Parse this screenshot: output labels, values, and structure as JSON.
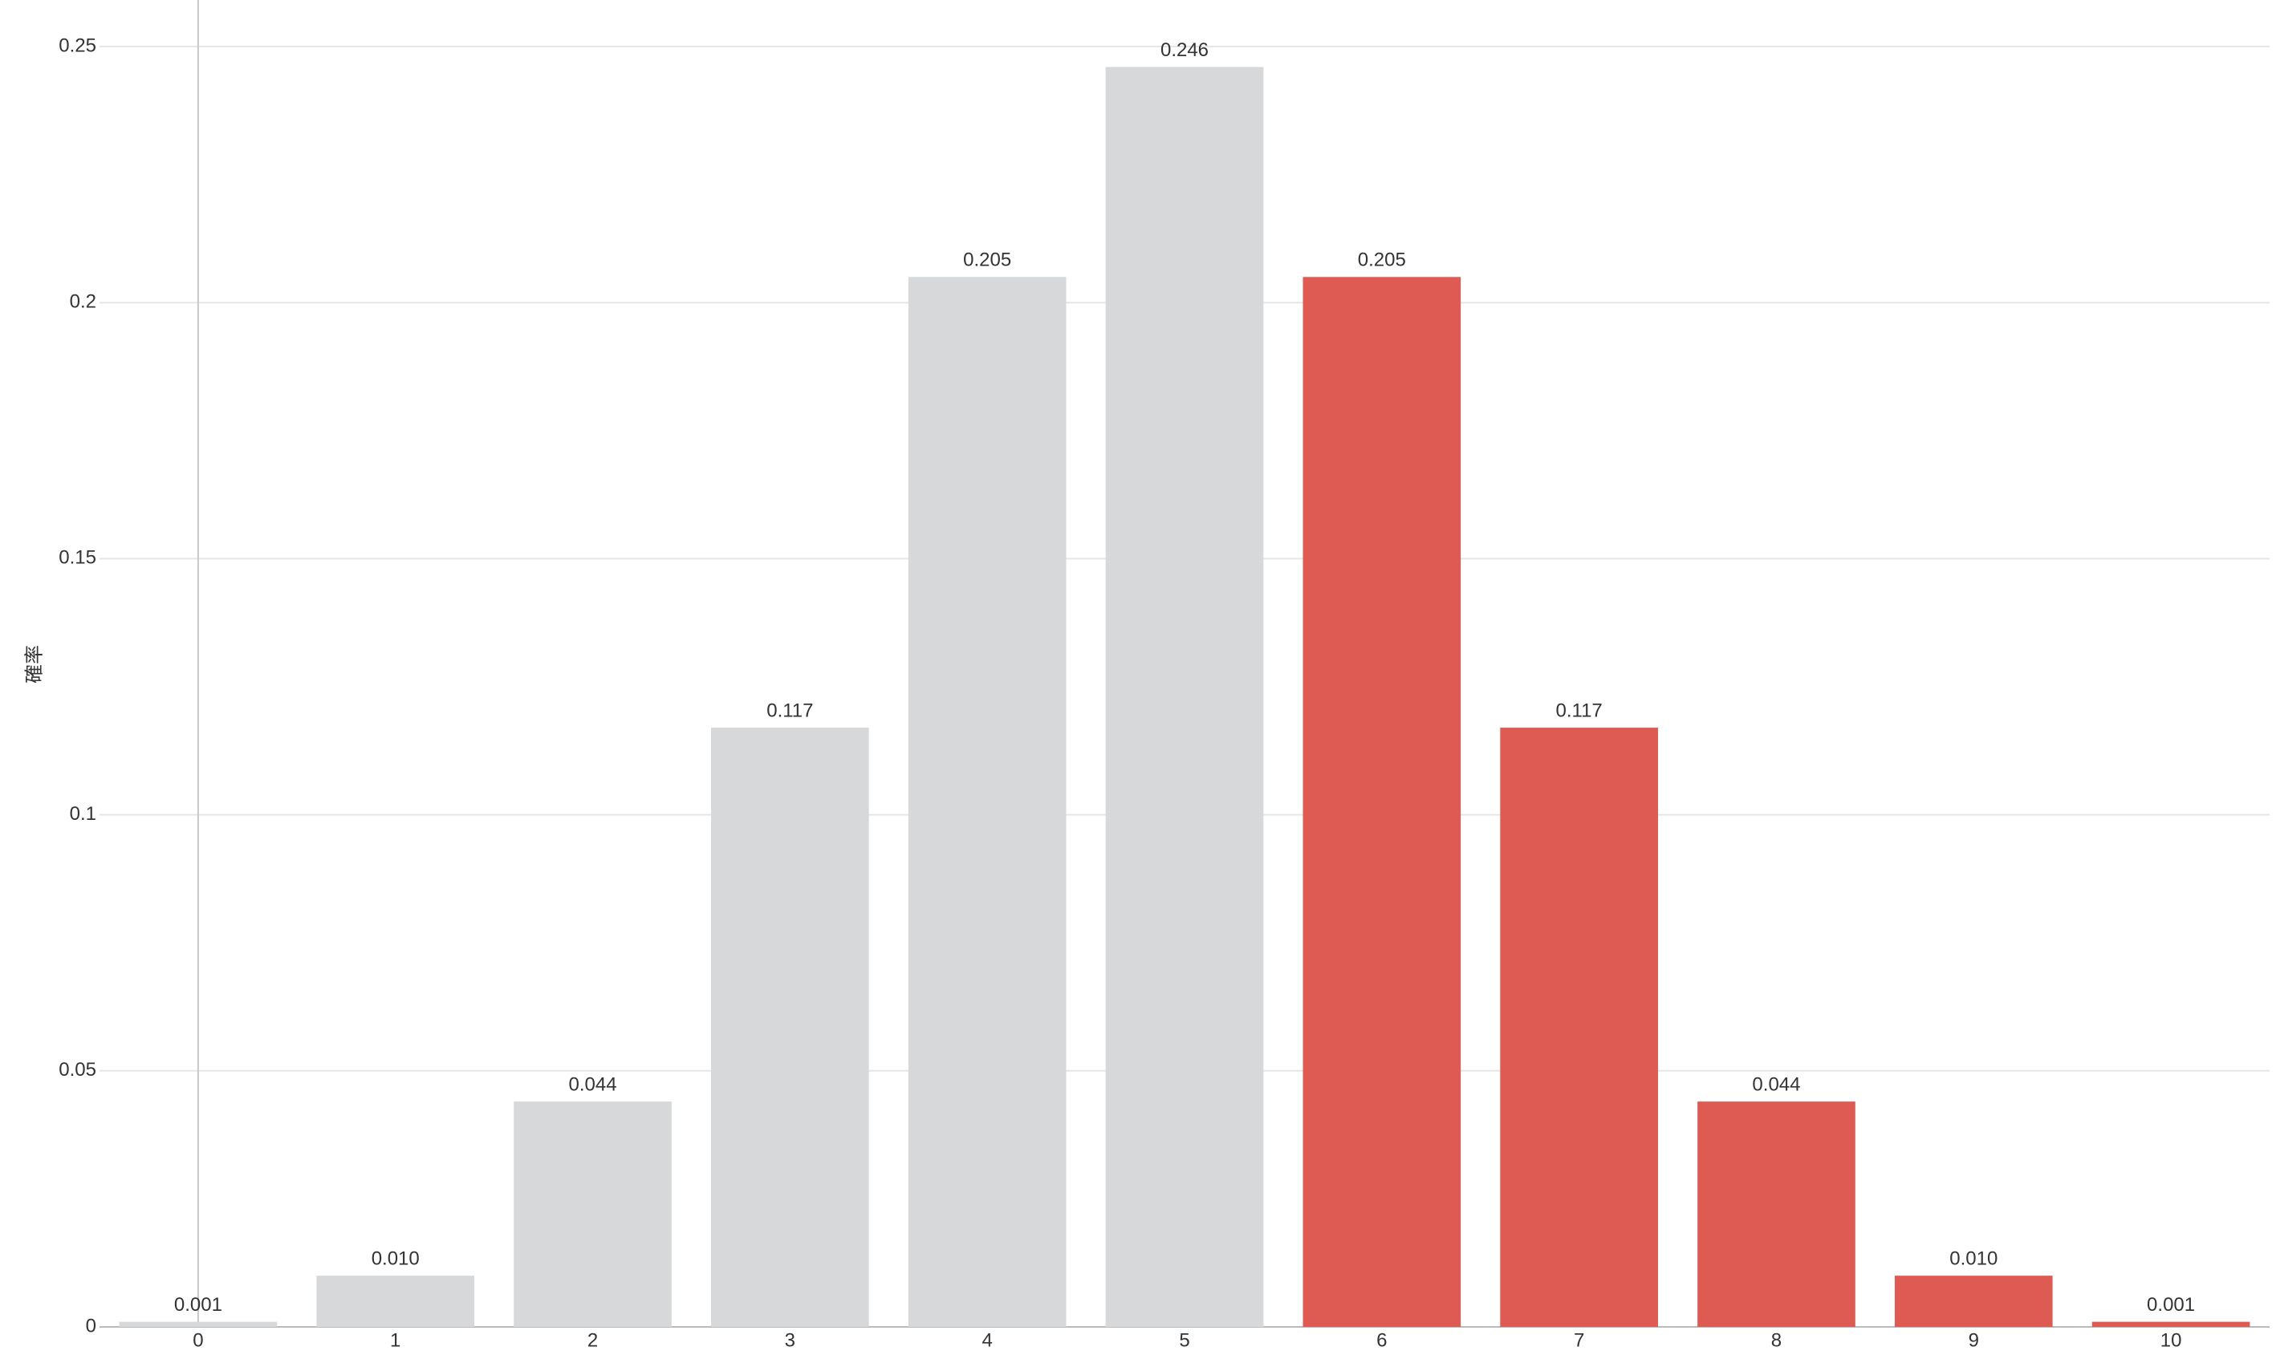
{
  "chart_data": {
    "type": "bar",
    "y_label": "確率",
    "categories": [
      "0",
      "1",
      "2",
      "3",
      "4",
      "5",
      "6",
      "7",
      "8",
      "9",
      "10"
    ],
    "values": [
      0.001,
      0.01,
      0.044,
      0.117,
      0.205,
      0.246,
      0.205,
      0.117,
      0.044,
      0.01,
      0.001
    ],
    "value_labels": [
      "0.001",
      "0.010",
      "0.044",
      "0.117",
      "0.205",
      "0.246",
      "0.205",
      "0.117",
      "0.044",
      "0.010",
      "0.001"
    ],
    "colors": [
      "#d7d8da",
      "#d7d8da",
      "#d7d8da",
      "#d7d8da",
      "#d7d8da",
      "#d7d8da",
      "#dd5b52",
      "#dd5b52",
      "#dd5b52",
      "#dd5b52",
      "#dd5b52"
    ],
    "ylim": [
      0,
      0.25
    ],
    "yticks": [
      0,
      0.05,
      0.1,
      0.15,
      0.2,
      0.25
    ],
    "grid": true
  }
}
